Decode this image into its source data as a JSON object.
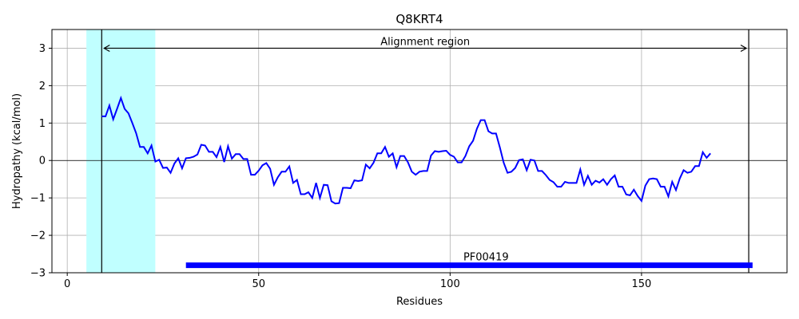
{
  "chart_data": {
    "type": "line",
    "title": "Q8KRT4",
    "xlabel": "Residues",
    "ylabel": "Hydropathy (kcal/mol)",
    "xlim": [
      -4,
      188
    ],
    "ylim": [
      -3,
      3.5
    ],
    "xticks": [
      0,
      50,
      100,
      150
    ],
    "yticks": [
      -3,
      -2,
      -1,
      0,
      1,
      2,
      3
    ],
    "grid": true,
    "series": [
      {
        "color": "#0000ff",
        "x": [
          9,
          10,
          11,
          12,
          13,
          14,
          15,
          16,
          17,
          18,
          19,
          20,
          21,
          22,
          23,
          24,
          25,
          26,
          27,
          28,
          29,
          30,
          31,
          32,
          33,
          34,
          35,
          36,
          37,
          38,
          39,
          40,
          41,
          42,
          43,
          44,
          45,
          46,
          47,
          48,
          49,
          50,
          51,
          52,
          53,
          54,
          55,
          56,
          57,
          58,
          59,
          60,
          61,
          62,
          63,
          64,
          65,
          66,
          67,
          68,
          69,
          70,
          71,
          72,
          73,
          74,
          75,
          76,
          77,
          78,
          79,
          80,
          81,
          82,
          83,
          84,
          85,
          86,
          87,
          88,
          89,
          90,
          91,
          92,
          93,
          94,
          95,
          96,
          97,
          98,
          99,
          100,
          101,
          102,
          103,
          104,
          105,
          106,
          107,
          108,
          109,
          110,
          111,
          112,
          113,
          114,
          115,
          116,
          117,
          118,
          119,
          120,
          121,
          122,
          123,
          124,
          125,
          126,
          127,
          128,
          129,
          130,
          131,
          132,
          133,
          134,
          135,
          136,
          137,
          138,
          139,
          140,
          141,
          142,
          143,
          144,
          145,
          146,
          147,
          148,
          149,
          150,
          151,
          152,
          153,
          154,
          155,
          156,
          157,
          158,
          159,
          160,
          161,
          162,
          163,
          164,
          165,
          166,
          167,
          168
        ],
        "y": [
          1.18,
          1.18,
          1.47,
          1.1,
          1.38,
          1.67,
          1.38,
          1.26,
          1.0,
          0.73,
          0.36,
          0.36,
          0.19,
          0.4,
          -0.03,
          0.02,
          -0.2,
          -0.19,
          -0.33,
          -0.08,
          0.06,
          -0.21,
          0.06,
          0.07,
          0.1,
          0.16,
          0.42,
          0.4,
          0.23,
          0.23,
          0.09,
          0.36,
          -0.04,
          0.38,
          0.05,
          0.17,
          0.17,
          0.04,
          0.04,
          -0.38,
          -0.38,
          -0.27,
          -0.13,
          -0.07,
          -0.22,
          -0.65,
          -0.45,
          -0.3,
          -0.3,
          -0.16,
          -0.6,
          -0.52,
          -0.9,
          -0.9,
          -0.85,
          -1.0,
          -0.6,
          -1.0,
          -0.65,
          -0.66,
          -1.09,
          -1.15,
          -1.14,
          -0.73,
          -0.73,
          -0.74,
          -0.53,
          -0.55,
          -0.53,
          -0.11,
          -0.21,
          -0.06,
          0.19,
          0.19,
          0.36,
          0.1,
          0.19,
          -0.18,
          0.12,
          0.12,
          -0.05,
          -0.3,
          -0.38,
          -0.3,
          -0.28,
          -0.28,
          0.13,
          0.25,
          0.23,
          0.25,
          0.26,
          0.15,
          0.1,
          -0.05,
          -0.05,
          0.12,
          0.38,
          0.53,
          0.85,
          1.08,
          1.08,
          0.78,
          0.72,
          0.72,
          0.35,
          -0.06,
          -0.33,
          -0.3,
          -0.2,
          0.01,
          0.03,
          -0.26,
          0.02,
          0.0,
          -0.28,
          -0.28,
          -0.39,
          -0.52,
          -0.58,
          -0.7,
          -0.7,
          -0.57,
          -0.6,
          -0.6,
          -0.6,
          -0.24,
          -0.65,
          -0.41,
          -0.65,
          -0.54,
          -0.59,
          -0.5,
          -0.65,
          -0.5,
          -0.4,
          -0.7,
          -0.7,
          -0.91,
          -0.93,
          -0.78,
          -0.95,
          -1.08,
          -0.67,
          -0.5,
          -0.48,
          -0.5,
          -0.7,
          -0.7,
          -0.96,
          -0.57,
          -0.79,
          -0.48,
          -0.26,
          -0.33,
          -0.3,
          -0.15,
          -0.15,
          0.22,
          0.07,
          0.19
        ]
      }
    ],
    "region_shade": {
      "x0": 5,
      "x1": 23,
      "color": "#c0ffff"
    },
    "alignment": {
      "label": "Alignment region",
      "x0": 9,
      "x1": 178,
      "y": 3.0
    },
    "domain_bar": {
      "label": "PF00419",
      "x0": 31,
      "x1": 179,
      "y": -2.8,
      "color": "#0000ff"
    }
  }
}
